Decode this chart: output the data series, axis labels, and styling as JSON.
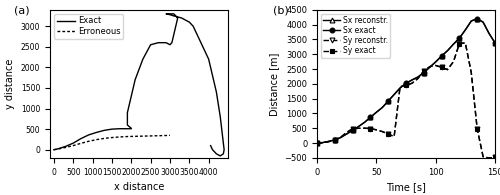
{
  "left_title": "(a)",
  "right_title": "(b)",
  "left_xlabel": "x distance",
  "left_ylabel": "y distance",
  "right_xlabel": "Time [s]",
  "right_ylabel": "Distance [m]",
  "left_xlim": [
    -100,
    4500
  ],
  "left_ylim": [
    -200,
    3400
  ],
  "right_xlim": [
    0,
    150
  ],
  "right_ylim": [
    -500,
    4500
  ],
  "left_xticks": [
    0,
    500,
    1000,
    1500,
    2000,
    2500,
    3000,
    3500,
    4000
  ],
  "left_yticks": [
    0,
    500,
    1000,
    1500,
    2000,
    2500,
    3000
  ],
  "right_xticks": [
    0,
    50,
    100,
    150
  ],
  "right_yticks": [
    -500,
    0,
    500,
    1000,
    1500,
    2000,
    2500,
    3000,
    3500,
    4000,
    4500
  ],
  "exact_x": [
    0,
    100,
    300,
    500,
    700,
    900,
    1100,
    1300,
    1500,
    1700,
    1900,
    2000,
    2000,
    1900,
    1900,
    2000,
    2100,
    2300,
    2500,
    2700,
    2800,
    2900,
    3000,
    3050,
    3100,
    3200,
    3100,
    2950,
    2900,
    3000,
    3100,
    3300,
    3500,
    3600,
    3700,
    3800,
    3900,
    4000,
    4100,
    4200,
    4300,
    4350,
    4400,
    4380,
    4300,
    4200,
    4100,
    4050
  ],
  "exact_y": [
    0,
    20,
    80,
    160,
    270,
    360,
    420,
    470,
    500,
    510,
    510,
    510,
    520,
    600,
    900,
    1300,
    1700,
    2200,
    2550,
    2600,
    2600,
    2600,
    2550,
    2600,
    2800,
    3200,
    3300,
    3300,
    3300,
    3280,
    3250,
    3200,
    3100,
    3000,
    2800,
    2600,
    2400,
    2200,
    1800,
    1400,
    800,
    400,
    0,
    -100,
    -150,
    -100,
    0,
    100
  ],
  "erroneous_x": [
    0,
    100,
    300,
    500,
    700,
    900,
    1100,
    1300,
    1500,
    1700,
    1900,
    2100,
    2300,
    2500,
    2700,
    2900,
    3000
  ],
  "erroneous_y": [
    0,
    15,
    55,
    100,
    155,
    205,
    245,
    275,
    295,
    310,
    320,
    325,
    330,
    335,
    340,
    345,
    350
  ],
  "sx_reconstr_t": [
    0,
    5,
    10,
    15,
    20,
    25,
    30,
    35,
    40,
    45,
    50,
    55,
    60,
    65,
    70,
    75,
    80,
    85,
    90,
    95,
    100,
    105,
    110,
    115,
    120,
    125,
    130,
    135,
    140,
    145,
    150
  ],
  "sx_reconstr_v": [
    0,
    20,
    60,
    110,
    190,
    310,
    430,
    560,
    700,
    870,
    1040,
    1200,
    1420,
    1640,
    1860,
    2020,
    2130,
    2230,
    2380,
    2560,
    2740,
    2940,
    3120,
    3340,
    3540,
    3820,
    4120,
    4200,
    4080,
    3700,
    3380
  ],
  "sx_exact_t": [
    0,
    5,
    10,
    15,
    20,
    25,
    30,
    35,
    40,
    45,
    50,
    55,
    60,
    65,
    70,
    75,
    80,
    85,
    90,
    95,
    100,
    105,
    110,
    115,
    120,
    125,
    130,
    135,
    140,
    145,
    150
  ],
  "sx_exact_v": [
    0,
    20,
    60,
    110,
    190,
    310,
    430,
    560,
    700,
    870,
    1040,
    1200,
    1420,
    1640,
    1860,
    2020,
    2130,
    2230,
    2380,
    2560,
    2740,
    2940,
    3120,
    3340,
    3540,
    3820,
    4120,
    4200,
    4080,
    3700,
    3380
  ],
  "sy_reconstr_t": [
    0,
    5,
    10,
    15,
    20,
    25,
    30,
    35,
    40,
    45,
    50,
    55,
    60,
    65,
    70,
    75,
    80,
    85,
    90,
    95,
    100,
    105,
    110,
    115,
    120,
    125,
    130,
    135,
    140,
    145,
    150
  ],
  "sy_reconstr_v": [
    0,
    15,
    50,
    100,
    200,
    360,
    490,
    500,
    505,
    490,
    450,
    390,
    310,
    220,
    1900,
    1950,
    2020,
    2180,
    2430,
    2580,
    2620,
    2560,
    2480,
    2750,
    3360,
    3380,
    2380,
    480,
    -460,
    -500,
    -480
  ],
  "sy_exact_t": [
    0,
    5,
    10,
    15,
    20,
    25,
    30,
    35,
    40,
    45,
    50,
    55,
    60,
    65,
    70,
    75,
    80,
    85,
    90,
    95,
    100,
    105,
    110,
    115,
    120,
    125,
    130,
    135,
    140,
    145,
    150
  ],
  "sy_exact_v": [
    0,
    15,
    50,
    100,
    200,
    360,
    490,
    500,
    505,
    490,
    450,
    390,
    310,
    220,
    1900,
    1950,
    2020,
    2180,
    2430,
    2580,
    2620,
    2560,
    2480,
    2750,
    3360,
    3380,
    2380,
    480,
    -460,
    -500,
    -480
  ]
}
